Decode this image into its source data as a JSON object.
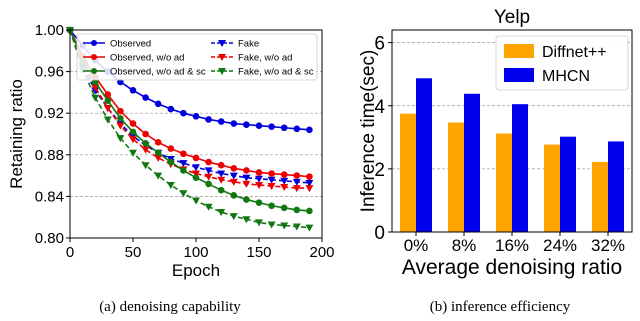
{
  "chart_data": [
    {
      "type": "line",
      "caption": "(a) denoising capability",
      "xlabel": "Epoch",
      "ylabel": "Retaining ratio",
      "xlim": [
        0,
        200
      ],
      "ylim": [
        0.8,
        1.0
      ],
      "xticks": [
        "0",
        "50",
        "100",
        "150",
        "200"
      ],
      "yticks": [
        "0.80",
        "0.84",
        "0.88",
        "0.92",
        "0.96",
        "1.00"
      ],
      "grid": "horizontal dashed",
      "legend_position": "top-right",
      "x": [
        0,
        10,
        20,
        30,
        40,
        50,
        60,
        70,
        80,
        90,
        100,
        110,
        120,
        130,
        140,
        150,
        160,
        170,
        180,
        190
      ],
      "series": [
        {
          "name": "Observed",
          "color": "#0000dd",
          "style": "solid",
          "marker": "circle",
          "values": [
            1.0,
            0.985,
            0.971,
            0.96,
            0.95,
            0.942,
            0.935,
            0.929,
            0.924,
            0.92,
            0.917,
            0.914,
            0.912,
            0.91,
            0.909,
            0.908,
            0.907,
            0.906,
            0.905,
            0.904
          ]
        },
        {
          "name": "Fake",
          "color": "#0000dd",
          "style": "dashed",
          "marker": "triangle-down",
          "values": [
            1.0,
            0.965,
            0.942,
            0.925,
            0.91,
            0.898,
            0.889,
            0.882,
            0.876,
            0.872,
            0.868,
            0.865,
            0.862,
            0.86,
            0.858,
            0.857,
            0.856,
            0.855,
            0.854,
            0.853
          ]
        },
        {
          "name": "Observed, w/o ad",
          "color": "#ee0000",
          "style": "solid",
          "marker": "circle",
          "values": [
            1.0,
            0.975,
            0.955,
            0.938,
            0.922,
            0.91,
            0.9,
            0.892,
            0.886,
            0.881,
            0.877,
            0.873,
            0.87,
            0.867,
            0.865,
            0.863,
            0.862,
            0.861,
            0.86,
            0.859
          ]
        },
        {
          "name": "Fake, w/o ad",
          "color": "#ee0000",
          "style": "dashed",
          "marker": "triangle-down",
          "values": [
            1.0,
            0.97,
            0.945,
            0.925,
            0.908,
            0.895,
            0.885,
            0.877,
            0.871,
            0.866,
            0.862,
            0.859,
            0.856,
            0.854,
            0.852,
            0.851,
            0.85,
            0.849,
            0.848,
            0.848
          ]
        },
        {
          "name": "Observed, w/o ad & sc",
          "color": "#117711",
          "style": "solid",
          "marker": "circle",
          "values": [
            1.0,
            0.972,
            0.95,
            0.932,
            0.915,
            0.902,
            0.891,
            0.882,
            0.873,
            0.865,
            0.858,
            0.852,
            0.846,
            0.841,
            0.837,
            0.834,
            0.831,
            0.829,
            0.827,
            0.826
          ]
        },
        {
          "name": "Fake, w/o ad & sc",
          "color": "#117711",
          "style": "dashed",
          "marker": "triangle-down",
          "values": [
            1.0,
            0.962,
            0.935,
            0.914,
            0.896,
            0.882,
            0.87,
            0.86,
            0.851,
            0.843,
            0.836,
            0.83,
            0.825,
            0.821,
            0.818,
            0.815,
            0.813,
            0.812,
            0.811,
            0.81
          ]
        }
      ]
    },
    {
      "type": "bar",
      "caption": "(b) inference efficiency",
      "title": "Yelp",
      "xlabel": "Average denoising ratio",
      "ylabel": "Inference time(sec)",
      "ylim": [
        0,
        6.4
      ],
      "yticks": [
        "0",
        "2",
        "4",
        "6"
      ],
      "grid": "horizontal dashed",
      "legend_position": "top-right",
      "categories": [
        "0%",
        "8%",
        "16%",
        "24%",
        "32%"
      ],
      "series": [
        {
          "name": "Diffnet++",
          "color": "#ffa500",
          "values": [
            3.75,
            3.47,
            3.12,
            2.77,
            2.22
          ]
        },
        {
          "name": "MHCN",
          "color": "#0000ee",
          "values": [
            4.87,
            4.38,
            4.05,
            3.02,
            2.87
          ]
        }
      ]
    }
  ]
}
